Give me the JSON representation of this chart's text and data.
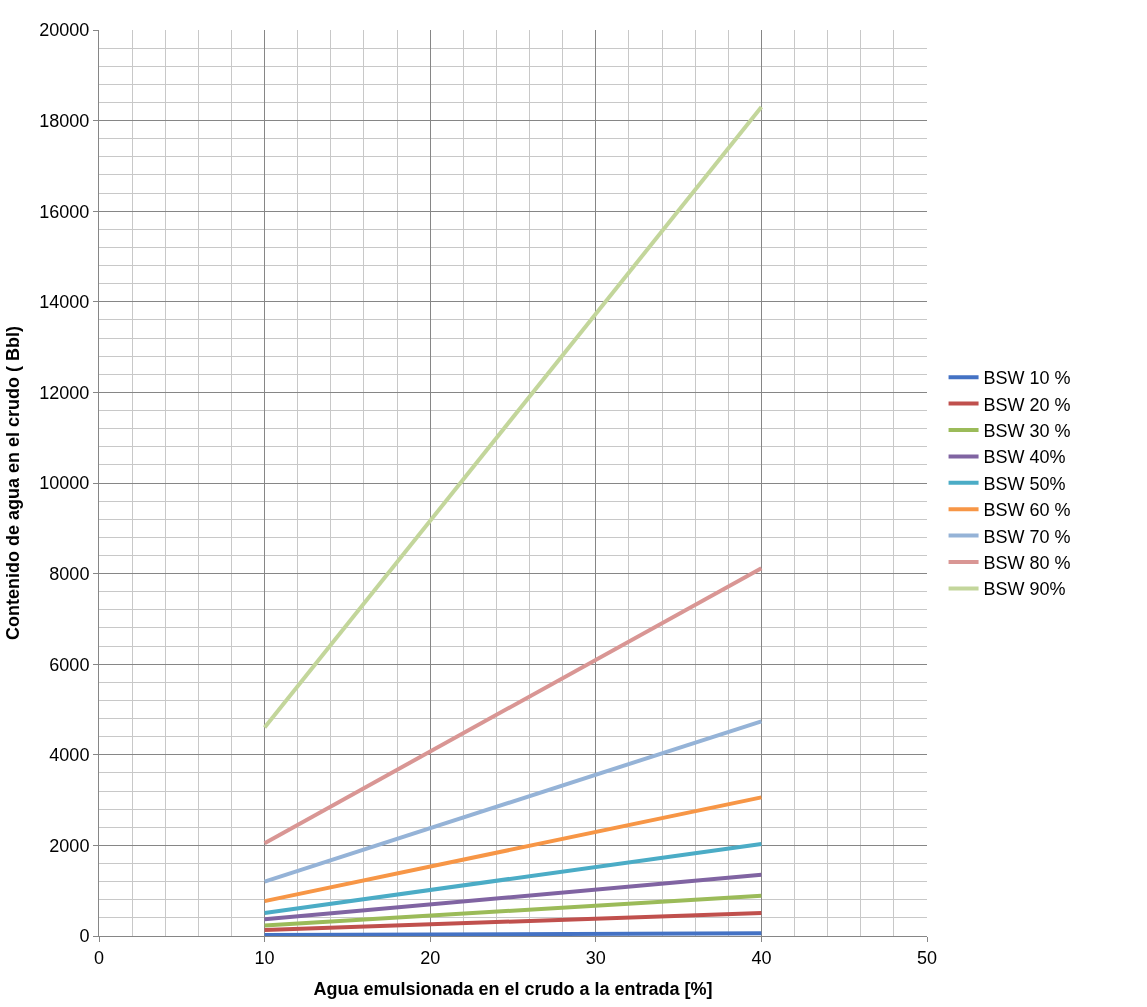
{
  "chart_data": {
    "type": "line",
    "xlabel": "Agua emulsionada en el crudo a la entrada [%]",
    "ylabel": "Contenido de agua en el crudo ( Bbl)",
    "x": [
      10,
      40
    ],
    "series": [
      {
        "name": "BSW 10 %",
        "color": "#4472c4",
        "values": [
          20,
          60
        ]
      },
      {
        "name": "BSW 20 %",
        "color": "#c0504d",
        "values": [
          130,
          510
        ]
      },
      {
        "name": "BSW 30 %",
        "color": "#9bbb59",
        "values": [
          230,
          890
        ]
      },
      {
        "name": "BSW 40%",
        "color": "#8064a2",
        "values": [
          370,
          1350
        ]
      },
      {
        "name": "BSW 50%",
        "color": "#4bacc6",
        "values": [
          510,
          2030
        ]
      },
      {
        "name": "BSW 60 %",
        "color": "#f79646",
        "values": [
          770,
          3060
        ]
      },
      {
        "name": "BSW 70 %",
        "color": "#95b3d7",
        "values": [
          1200,
          4740
        ]
      },
      {
        "name": "BSW 80 %",
        "color": "#d99694",
        "values": [
          2050,
          8120
        ]
      },
      {
        "name": "BSW 90%",
        "color": "#c3d69b",
        "values": [
          4600,
          18300
        ]
      }
    ],
    "xlim": [
      0,
      50
    ],
    "xticks": [
      0,
      10,
      20,
      30,
      40,
      50
    ],
    "ylim": [
      0,
      20000
    ],
    "yticks": [
      0,
      2000,
      4000,
      6000,
      8000,
      10000,
      12000,
      14000,
      16000,
      18000,
      20000
    ],
    "grid": true,
    "legend": "right",
    "marker": "none",
    "line_style": "solid"
  }
}
